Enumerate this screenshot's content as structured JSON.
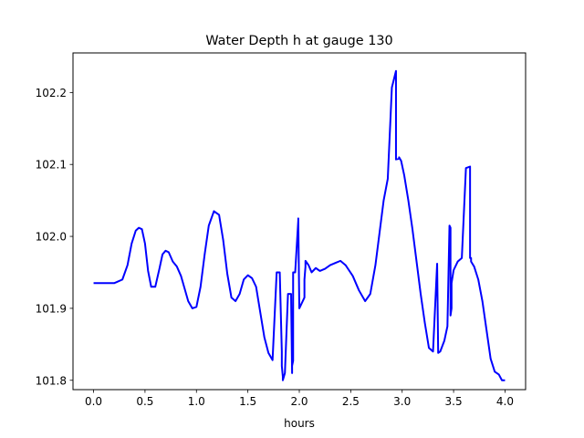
{
  "chart_data": {
    "type": "line",
    "title": "Water Depth h at gauge 130",
    "xlabel": "hours",
    "ylabel": "",
    "xlim": [
      -0.2,
      4.2
    ],
    "ylim": [
      101.787,
      102.255
    ],
    "grid": false,
    "x_ticks": [
      0.0,
      0.5,
      1.0,
      1.5,
      2.0,
      2.5,
      3.0,
      3.5,
      4.0
    ],
    "x_tick_labels": [
      "0.0",
      "0.5",
      "1.0",
      "1.5",
      "2.0",
      "2.5",
      "3.0",
      "3.5",
      "4.0"
    ],
    "y_ticks": [
      101.8,
      101.9,
      102.0,
      102.1,
      102.2
    ],
    "y_tick_labels": [
      "101.8",
      "101.9",
      "102.0",
      "102.1",
      "102.2"
    ],
    "series": [
      {
        "color": "#0000ff",
        "x": [
          0.0,
          0.1,
          0.2,
          0.28,
          0.33,
          0.37,
          0.41,
          0.44,
          0.47,
          0.5,
          0.53,
          0.56,
          0.6,
          0.64,
          0.67,
          0.7,
          0.73,
          0.77,
          0.81,
          0.85,
          0.88,
          0.92,
          0.96,
          1.0,
          1.04,
          1.08,
          1.12,
          1.17,
          1.22,
          1.26,
          1.3,
          1.34,
          1.38,
          1.42,
          1.46,
          1.5,
          1.54,
          1.58,
          1.62,
          1.66,
          1.7,
          1.74,
          1.78,
          1.81,
          1.83,
          1.83,
          1.84,
          1.84,
          1.86,
          1.89,
          1.92,
          1.93,
          1.93,
          1.94,
          1.94,
          1.96,
          1.99,
          1.99,
          2.0,
          2.05,
          2.05,
          2.06,
          2.06,
          2.09,
          2.12,
          2.16,
          2.2,
          2.25,
          2.3,
          2.35,
          2.4,
          2.45,
          2.52,
          2.58,
          2.64,
          2.69,
          2.74,
          2.78,
          2.82,
          2.86,
          2.9,
          2.94,
          2.94,
          2.97,
          2.97,
          2.99,
          3.02,
          3.06,
          3.1,
          3.14,
          3.18,
          3.22,
          3.26,
          3.3,
          3.34,
          3.34,
          3.35,
          3.35,
          3.37,
          3.41,
          3.44,
          3.46,
          3.47,
          3.47,
          3.48,
          3.48,
          3.5,
          3.54,
          3.58,
          3.62,
          3.66,
          3.66,
          3.67,
          3.67,
          3.7,
          3.74,
          3.78,
          3.82,
          3.86,
          3.9,
          3.94,
          3.97,
          4.0
        ],
        "y": [
          101.935,
          101.935,
          101.935,
          101.94,
          101.96,
          101.99,
          102.008,
          102.012,
          102.01,
          101.99,
          101.952,
          101.93,
          101.93,
          101.955,
          101.975,
          101.98,
          101.978,
          101.965,
          101.958,
          101.945,
          101.93,
          101.91,
          101.9,
          101.902,
          101.93,
          101.975,
          102.015,
          102.035,
          102.03,
          101.995,
          101.948,
          101.915,
          101.91,
          101.92,
          101.94,
          101.946,
          101.942,
          101.93,
          101.895,
          101.86,
          101.838,
          101.828,
          101.95,
          101.95,
          101.84,
          101.82,
          101.805,
          101.8,
          101.81,
          101.92,
          101.92,
          101.81,
          101.82,
          101.827,
          101.95,
          101.95,
          102.022,
          102.025,
          101.9,
          101.915,
          101.94,
          101.958,
          101.966,
          101.96,
          101.95,
          101.956,
          101.952,
          101.955,
          101.96,
          101.963,
          101.966,
          101.96,
          101.945,
          101.925,
          101.91,
          101.92,
          101.96,
          102.005,
          102.05,
          102.08,
          102.207,
          102.23,
          102.107,
          102.108,
          102.11,
          102.105,
          102.085,
          102.05,
          102.01,
          101.965,
          101.92,
          101.88,
          101.845,
          101.84,
          101.962,
          101.962,
          101.84,
          101.838,
          101.84,
          101.855,
          101.875,
          102.015,
          102.012,
          101.89,
          101.9,
          101.935,
          101.953,
          101.965,
          101.97,
          102.095,
          102.097,
          101.97,
          101.97,
          101.965,
          101.958,
          101.94,
          101.91,
          101.87,
          101.83,
          101.812,
          101.808,
          101.8,
          101.8
        ]
      }
    ]
  }
}
